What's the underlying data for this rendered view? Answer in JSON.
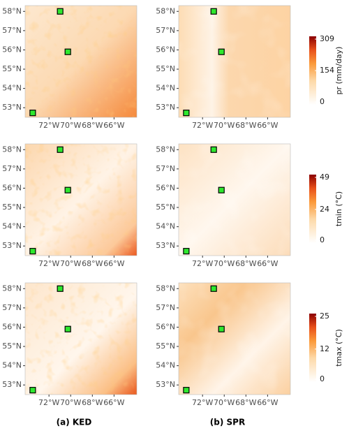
{
  "columns": [
    "(a) KED",
    "(b) SPR"
  ],
  "rows": [
    {
      "variable": "pr (mm/day)",
      "ticks": [
        0,
        154,
        309
      ]
    },
    {
      "variable": "tmin (°C)",
      "ticks": [
        0,
        24,
        49
      ]
    },
    {
      "variable": "tmax (°C)",
      "ticks": [
        0,
        12,
        25
      ]
    }
  ],
  "map": {
    "xlim": [
      -74.2,
      -63.9
    ],
    "ylim": [
      52.5,
      58.3
    ],
    "xticks": [
      {
        "value": -72,
        "label": "72°W"
      },
      {
        "value": -70,
        "label": "70°W"
      },
      {
        "value": -68,
        "label": "68°W"
      },
      {
        "value": -66,
        "label": "66°W"
      }
    ],
    "yticks": [
      {
        "value": 53,
        "label": "53°N"
      },
      {
        "value": 54,
        "label": "54°N"
      },
      {
        "value": 55,
        "label": "55°N"
      },
      {
        "value": 56,
        "label": "56°N"
      },
      {
        "value": 57,
        "label": "57°N"
      },
      {
        "value": 58,
        "label": "58°N"
      }
    ]
  },
  "stations": [
    {
      "lon": -70.97,
      "lat": 58.0
    },
    {
      "lon": -70.26,
      "lat": 55.9
    },
    {
      "lon": -73.5,
      "lat": 52.73
    }
  ]
}
